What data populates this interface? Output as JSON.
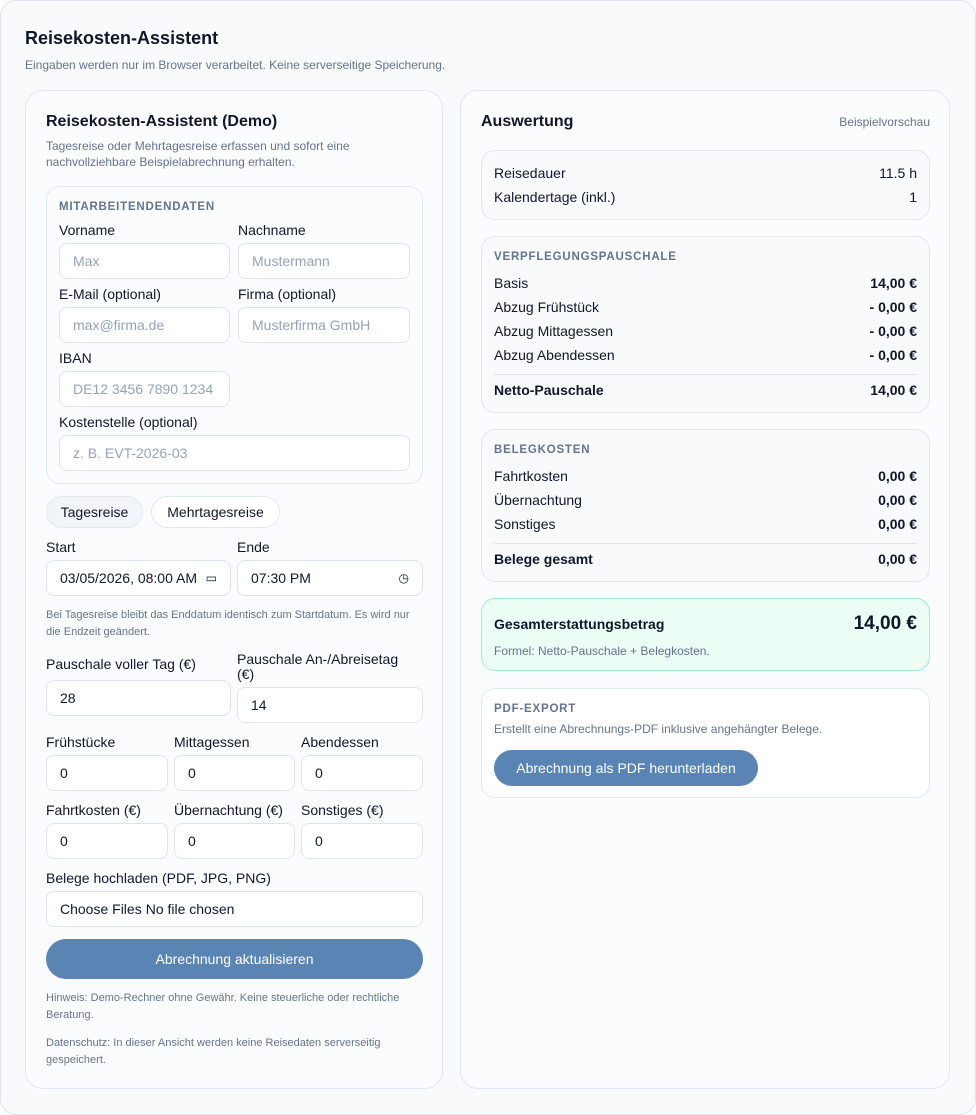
{
  "header": {
    "title": "Reisekosten-Assistent",
    "subtitle": "Eingaben werden nur im Browser verarbeitet. Keine serverseitige Speicherung."
  },
  "form": {
    "title": "Reisekosten-Assistent (Demo)",
    "description": "Tagesreise oder Mehrtagesreise erfassen und sofort eine nachvollziehbare Beispielabrechnung erhalten.",
    "employee": {
      "section": "MITARBEITENDENDATEN",
      "first_name": {
        "label": "Vorname",
        "placeholder": "Max"
      },
      "last_name": {
        "label": "Nachname",
        "placeholder": "Mustermann"
      },
      "email": {
        "label": "E-Mail (optional)",
        "placeholder": "max@firma.de"
      },
      "company": {
        "label": "Firma (optional)",
        "placeholder": "Musterfirma GmbH"
      },
      "iban": {
        "label": "IBAN",
        "placeholder": "DE12 3456 7890 1234"
      },
      "cost_center": {
        "label": "Kostenstelle (optional)",
        "placeholder": "z. B. EVT-2026-03"
      }
    },
    "trip_types": [
      {
        "label": "Tagesreise",
        "selected": true
      },
      {
        "label": "Mehrtagesreise",
        "selected": false
      }
    ],
    "start": {
      "label": "Start",
      "value": "03/05/2026, 08:00 AM"
    },
    "end": {
      "label": "Ende",
      "value": "07:30 PM"
    },
    "hint": "Bei Tagesreise bleibt das Enddatum identisch zum Startdatum. Es wird nur die Endzeit geändert.",
    "full_day": {
      "label": "Pauschale voller Tag (€)",
      "value": "28"
    },
    "arrival_day": {
      "label": "Pauschale An-/Abreisetag (€)",
      "value": "14"
    },
    "breakfast": {
      "label": "Frühstücke",
      "value": "0"
    },
    "lunch": {
      "label": "Mittagessen",
      "value": "0"
    },
    "dinner": {
      "label": "Abendessen",
      "value": "0"
    },
    "travel": {
      "label": "Fahrtkosten (€)",
      "value": "0"
    },
    "lodging": {
      "label": "Übernachtung (€)",
      "value": "0"
    },
    "other": {
      "label": "Sonstiges (€)",
      "value": "0"
    },
    "upload": {
      "label": "Belege hochladen (PDF, JPG, PNG)",
      "button": "Choose Files",
      "status": "No file chosen"
    },
    "submit": "Abrechnung aktualisieren",
    "note1": "Hinweis: Demo-Rechner ohne Gewähr. Keine steuerliche oder rechtliche Beratung.",
    "note2": "Datenschutz: In dieser Ansicht werden keine Reisedaten serverseitig gespeichert."
  },
  "result": {
    "title": "Auswertung",
    "badge": "Beispielvorschau",
    "duration": [
      {
        "label": "Reisedauer",
        "value": "11.5 h"
      },
      {
        "label": "Kalendertage (inkl.)",
        "value": "1"
      }
    ],
    "allowance": {
      "section": "VERPFLEGUNGSPAUSCHALE",
      "rows": [
        {
          "label": "Basis",
          "value": "14,00 €"
        },
        {
          "label": "Abzug Frühstück",
          "value": "- 0,00 €"
        },
        {
          "label": "Abzug Mittagessen",
          "value": "- 0,00 €"
        },
        {
          "label": "Abzug Abendessen",
          "value": "- 0,00 €"
        }
      ],
      "total": {
        "label": "Netto-Pauschale",
        "value": "14,00 €"
      }
    },
    "receipts": {
      "section": "BELEGKOSTEN",
      "rows": [
        {
          "label": "Fahrtkosten",
          "value": "0,00 €"
        },
        {
          "label": "Übernachtung",
          "value": "0,00 €"
        },
        {
          "label": "Sonstiges",
          "value": "0,00 €"
        }
      ],
      "total": {
        "label": "Belege gesamt",
        "value": "0,00 €"
      }
    },
    "grand": {
      "label": "Gesamterstattungsbetrag",
      "value": "14,00 €",
      "formula": "Formel: Netto-Pauschale + Belegkosten."
    },
    "pdf": {
      "section": "PDF-EXPORT",
      "description": "Erstellt eine Abrechnungs-PDF inklusive angehängter Belege.",
      "button": "Abrechnung als PDF herunterladen"
    }
  },
  "colors": {
    "accent": "#5a84b4",
    "success_bg": "#ecfdf5",
    "success_border": "#86e8c4"
  }
}
